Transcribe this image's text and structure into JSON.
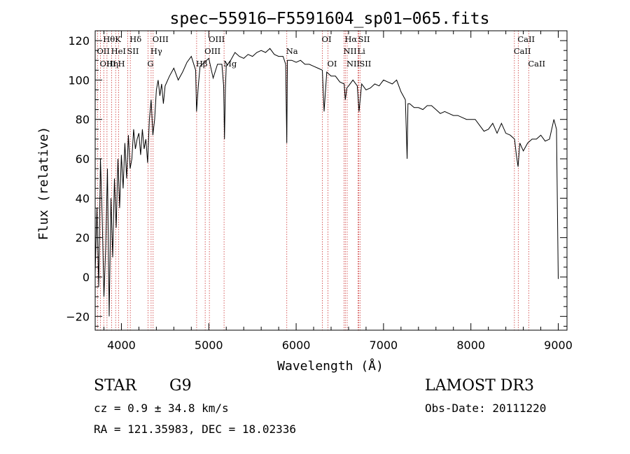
{
  "chart_data": {
    "type": "line",
    "title": "spec−55916−F5591604_sp01−065.fits",
    "xlabel": "Wavelength (Å)",
    "ylabel": "Flux (relative)",
    "xlim": [
      3700,
      9100
    ],
    "ylim": [
      -27,
      125
    ],
    "x_ticks": [
      4000,
      5000,
      6000,
      7000,
      8000,
      9000
    ],
    "x_tick_labels": [
      "4000",
      "5000",
      "6000",
      "7000",
      "8000",
      "9000"
    ],
    "y_ticks": [
      -20,
      0,
      20,
      40,
      60,
      80,
      100,
      120
    ],
    "y_tick_labels": [
      "−20",
      "0",
      "20",
      "40",
      "60",
      "80",
      "100",
      "120"
    ],
    "grid": false,
    "series": [
      {
        "x": [
          3700,
          3720,
          3740,
          3760,
          3780,
          3800,
          3820,
          3840,
          3860,
          3880,
          3900,
          3920,
          3940,
          3960,
          3980,
          4000,
          4020,
          4040,
          4060,
          4080,
          4100,
          4120,
          4140,
          4160,
          4180,
          4200,
          4220,
          4240,
          4260,
          4280,
          4300,
          4320,
          4340,
          4360,
          4380,
          4400,
          4420,
          4440,
          4460,
          4480,
          4500,
          4550,
          4600,
          4650,
          4700,
          4750,
          4800,
          4850,
          4860,
          4880,
          4900,
          4950,
          5000,
          5050,
          5100,
          5150,
          5170,
          5180,
          5190,
          5200,
          5250,
          5300,
          5350,
          5400,
          5450,
          5500,
          5550,
          5600,
          5650,
          5700,
          5750,
          5800,
          5850,
          5880,
          5893,
          5900,
          5950,
          6000,
          6050,
          6100,
          6150,
          6200,
          6250,
          6300,
          6320,
          6350,
          6400,
          6450,
          6500,
          6550,
          6563,
          6580,
          6600,
          6650,
          6700,
          6720,
          6750,
          6800,
          6850,
          6900,
          6950,
          7000,
          7050,
          7100,
          7150,
          7200,
          7250,
          7270,
          7280,
          7300,
          7350,
          7400,
          7450,
          7500,
          7550,
          7600,
          7650,
          7700,
          7750,
          7800,
          7850,
          7900,
          7950,
          8000,
          8050,
          8100,
          8150,
          8200,
          8250,
          8300,
          8350,
          8400,
          8450,
          8500,
          8520,
          8540,
          8560,
          8600,
          8650,
          8700,
          8750,
          8800,
          8850,
          8900,
          8950,
          8980,
          9000
        ],
        "y": [
          2,
          35,
          -5,
          60,
          30,
          -10,
          15,
          55,
          -20,
          40,
          10,
          50,
          25,
          60,
          35,
          62,
          45,
          68,
          50,
          72,
          55,
          60,
          75,
          65,
          70,
          73,
          62,
          75,
          65,
          70,
          58,
          80,
          90,
          72,
          80,
          95,
          100,
          92,
          98,
          88,
          97,
          102,
          106,
          100,
          104,
          109,
          112,
          105,
          84,
          97,
          107,
          109,
          111,
          101,
          108,
          108,
          97,
          70,
          96,
          107,
          110,
          114,
          112,
          111,
          113,
          112,
          114,
          115,
          114,
          116,
          113,
          112,
          112,
          108,
          68,
          110,
          110,
          109,
          110,
          108,
          108,
          107,
          106,
          105,
          84,
          104,
          102,
          102,
          99,
          98,
          90,
          96,
          97,
          100,
          97,
          84,
          98,
          95,
          96,
          98,
          97,
          100,
          99,
          98,
          100,
          94,
          90,
          60,
          88,
          88,
          86,
          86,
          85,
          87,
          87,
          85,
          83,
          84,
          83,
          82,
          82,
          81,
          80,
          80,
          80,
          77,
          74,
          75,
          78,
          73,
          78,
          73,
          72,
          70,
          62,
          56,
          68,
          64,
          68,
          70,
          70,
          72,
          69,
          70,
          80,
          75,
          -1
        ]
      }
    ],
    "lines": [
      {
        "label": "Hθ",
        "x": 3798,
        "row": 0
      },
      {
        "label": "OII",
        "x": 3727,
        "row": 1
      },
      {
        "label": "OIII",
        "x": 3760,
        "row": 2
      },
      {
        "label": "Hη",
        "x": 3835,
        "row": 2
      },
      {
        "label": "K",
        "x": 3934,
        "row": 0
      },
      {
        "label": "HeI",
        "x": 3889,
        "row": 1
      },
      {
        "label": "SII",
        "x": 4072,
        "row": 1
      },
      {
        "label": "H",
        "x": 3968,
        "row": 2
      },
      {
        "label": "Hδ",
        "x": 4102,
        "row": 0
      },
      {
        "label": "OIII",
        "x": 4363,
        "row": 0
      },
      {
        "label": "Hγ",
        "x": 4340,
        "row": 1
      },
      {
        "label": "G",
        "x": 4304,
        "row": 2
      },
      {
        "label": "OIII",
        "x": 5007,
        "row": 0
      },
      {
        "label": "OIII",
        "x": 4959,
        "row": 1
      },
      {
        "label": "Hβ",
        "x": 4861,
        "row": 2
      },
      {
        "label": "Mg",
        "x": 5175,
        "row": 2
      },
      {
        "label": "Na",
        "x": 5893,
        "row": 1
      },
      {
        "label": "OI",
        "x": 6300,
        "row": 0
      },
      {
        "label": "OI",
        "x": 6364,
        "row": 2
      },
      {
        "label": "Hα",
        "x": 6563,
        "row": 0
      },
      {
        "label": "NII",
        "x": 6548,
        "row": 1
      },
      {
        "label": "NII",
        "x": 6584,
        "row": 2
      },
      {
        "label": "SII",
        "x": 6717,
        "row": 0
      },
      {
        "label": "Li",
        "x": 6708,
        "row": 1
      },
      {
        "label": "SII",
        "x": 6731,
        "row": 2
      },
      {
        "label": "CaII",
        "x": 8542,
        "row": 0
      },
      {
        "label": "CaII",
        "x": 8498,
        "row": 1
      },
      {
        "label": "CaII",
        "x": 8662,
        "row": 2
      }
    ]
  },
  "info": {
    "class": "STAR",
    "subclass": "G9",
    "cz": "cz = 0.9 ± 34.8 km/s",
    "radec": "RA = 121.35983, DEC =  18.02336",
    "survey": "LAMOST DR3",
    "obsdate": "Obs-Date: 20111220"
  },
  "colors": {
    "line": "#000000",
    "marker": "#cc3333"
  }
}
